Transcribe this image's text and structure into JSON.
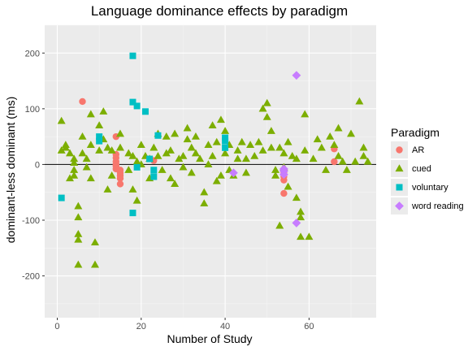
{
  "chart_data": {
    "type": "scatter",
    "title": "Language dominance effects by paradigm",
    "xlabel": "Number of Study",
    "ylabel": "dominant-less dominant (ms)",
    "xlim": [
      -3,
      76
    ],
    "ylim": [
      -275,
      250
    ],
    "x_ticks": [
      0,
      20,
      40,
      60
    ],
    "y_ticks": [
      -200,
      -100,
      0,
      100,
      200
    ],
    "grid": true,
    "hline": 0,
    "legend": {
      "title": "Paradigm",
      "position": "right"
    },
    "series": [
      {
        "name": "AR",
        "color": "#F8766D",
        "shape": "circle",
        "points": [
          [
            6,
            113
          ],
          [
            14,
            50
          ],
          [
            14,
            18
          ],
          [
            14,
            12
          ],
          [
            14,
            5
          ],
          [
            14,
            0
          ],
          [
            14,
            -3
          ],
          [
            14,
            -8
          ],
          [
            15,
            -10
          ],
          [
            15,
            -15
          ],
          [
            15,
            -20
          ],
          [
            15,
            -25
          ],
          [
            15,
            -35
          ],
          [
            23,
            7
          ],
          [
            54,
            -15
          ],
          [
            54,
            -22
          ],
          [
            54,
            -28
          ],
          [
            54,
            -52
          ],
          [
            66,
            28
          ],
          [
            66,
            5
          ]
        ]
      },
      {
        "name": "cued",
        "color": "#7CAE00",
        "shape": "triangle",
        "points": [
          [
            1,
            78
          ],
          [
            1,
            25
          ],
          [
            2,
            35
          ],
          [
            2,
            30
          ],
          [
            3,
            20
          ],
          [
            3,
            -25
          ],
          [
            4,
            10
          ],
          [
            4,
            3
          ],
          [
            4,
            -10
          ],
          [
            4,
            -20
          ],
          [
            5,
            -75
          ],
          [
            5,
            -95
          ],
          [
            5,
            -125
          ],
          [
            5,
            -135
          ],
          [
            5,
            -180
          ],
          [
            6,
            50
          ],
          [
            6,
            20
          ],
          [
            7,
            10
          ],
          [
            7,
            -5
          ],
          [
            8,
            90
          ],
          [
            8,
            35
          ],
          [
            8,
            -25
          ],
          [
            9,
            -180
          ],
          [
            9,
            -140
          ],
          [
            10,
            70
          ],
          [
            10,
            25
          ],
          [
            11,
            95
          ],
          [
            11,
            45
          ],
          [
            12,
            30
          ],
          [
            12,
            -45
          ],
          [
            13,
            25
          ],
          [
            13,
            -20
          ],
          [
            15,
            55
          ],
          [
            15,
            30
          ],
          [
            17,
            20
          ],
          [
            17,
            -10
          ],
          [
            18,
            -45
          ],
          [
            18,
            15
          ],
          [
            19,
            -65
          ],
          [
            19,
            5
          ],
          [
            20,
            35
          ],
          [
            20,
            0
          ],
          [
            21,
            15
          ],
          [
            22,
            -25
          ],
          [
            22,
            10
          ],
          [
            23,
            30
          ],
          [
            24,
            55
          ],
          [
            24,
            15
          ],
          [
            25,
            -10
          ],
          [
            26,
            20
          ],
          [
            26,
            50
          ],
          [
            27,
            25
          ],
          [
            27,
            -25
          ],
          [
            28,
            55
          ],
          [
            28,
            -35
          ],
          [
            29,
            10
          ],
          [
            30,
            -5
          ],
          [
            30,
            15
          ],
          [
            31,
            45
          ],
          [
            31,
            65
          ],
          [
            32,
            30
          ],
          [
            32,
            -15
          ],
          [
            33,
            20
          ],
          [
            33,
            50
          ],
          [
            34,
            10
          ],
          [
            35,
            -50
          ],
          [
            35,
            -70
          ],
          [
            36,
            35
          ],
          [
            36,
            0
          ],
          [
            37,
            70
          ],
          [
            37,
            15
          ],
          [
            38,
            40
          ],
          [
            38,
            -30
          ],
          [
            39,
            80
          ],
          [
            39,
            -20
          ],
          [
            40,
            60
          ],
          [
            40,
            20
          ],
          [
            41,
            35
          ],
          [
            41,
            -10
          ],
          [
            42,
            -20
          ],
          [
            43,
            25
          ],
          [
            43,
            10
          ],
          [
            44,
            40
          ],
          [
            45,
            10
          ],
          [
            45,
            -15
          ],
          [
            46,
            35
          ],
          [
            47,
            15
          ],
          [
            48,
            40
          ],
          [
            49,
            25
          ],
          [
            49,
            100
          ],
          [
            50,
            110
          ],
          [
            50,
            85
          ],
          [
            51,
            60
          ],
          [
            51,
            30
          ],
          [
            52,
            -10
          ],
          [
            52,
            -20
          ],
          [
            53,
            -110
          ],
          [
            53,
            30
          ],
          [
            54,
            20
          ],
          [
            54,
            -5
          ],
          [
            55,
            40
          ],
          [
            55,
            -40
          ],
          [
            56,
            15
          ],
          [
            57,
            10
          ],
          [
            57,
            -60
          ],
          [
            58,
            -85
          ],
          [
            58,
            -95
          ],
          [
            58,
            -130
          ],
          [
            59,
            90
          ],
          [
            59,
            25
          ],
          [
            60,
            -130
          ],
          [
            61,
            10
          ],
          [
            62,
            45
          ],
          [
            63,
            30
          ],
          [
            64,
            -10
          ],
          [
            65,
            50
          ],
          [
            66,
            35
          ],
          [
            67,
            65
          ],
          [
            67,
            15
          ],
          [
            68,
            5
          ],
          [
            69,
            -10
          ],
          [
            70,
            55
          ],
          [
            71,
            5
          ],
          [
            72,
            113
          ],
          [
            73,
            30
          ],
          [
            73,
            15
          ],
          [
            74,
            5
          ]
        ]
      },
      {
        "name": "voluntary",
        "color": "#00BFC4",
        "shape": "square",
        "points": [
          [
            1,
            -60
          ],
          [
            10,
            50
          ],
          [
            10,
            42
          ],
          [
            18,
            195
          ],
          [
            18,
            112
          ],
          [
            18,
            -87
          ],
          [
            19,
            105
          ],
          [
            19,
            -5
          ],
          [
            21,
            95
          ],
          [
            22,
            10
          ],
          [
            23,
            -10
          ],
          [
            23,
            -22
          ],
          [
            24,
            52
          ],
          [
            40,
            48
          ],
          [
            40,
            42
          ],
          [
            40,
            30
          ]
        ]
      },
      {
        "name": "word reading",
        "color": "#C77CFF",
        "shape": "diamond",
        "points": [
          [
            42,
            -15
          ],
          [
            54,
            -8
          ],
          [
            54,
            -12
          ],
          [
            54,
            -18
          ],
          [
            57,
            160
          ],
          [
            57,
            -105
          ]
        ]
      }
    ]
  }
}
